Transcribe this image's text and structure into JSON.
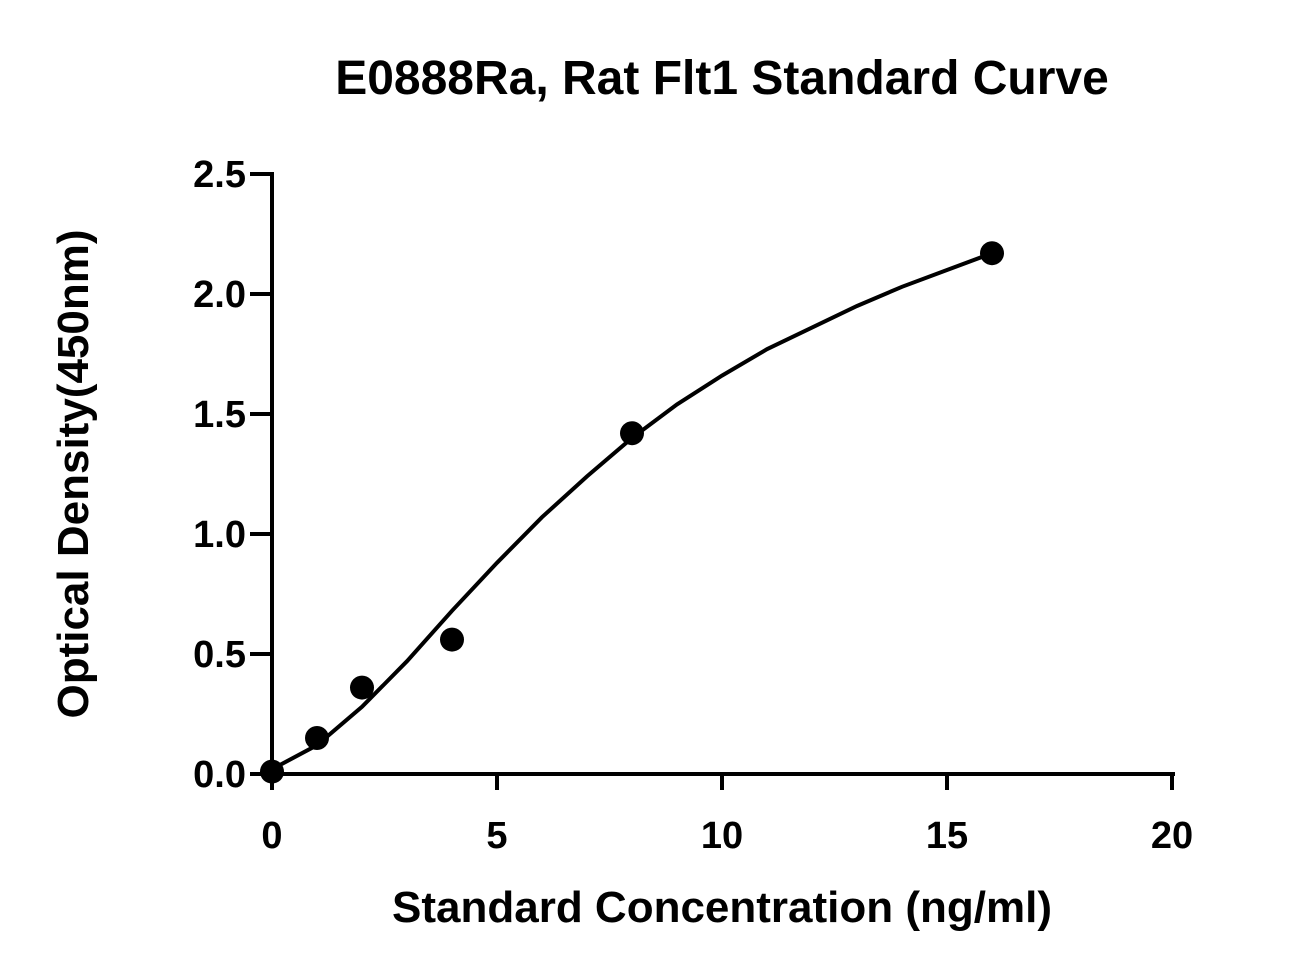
{
  "chart_data": {
    "type": "scatter",
    "title": "E0888Ra, Rat Flt1 Standard Curve",
    "xlabel": "Standard Concentration (ng/ml)",
    "ylabel": "Optical Density(450nm)",
    "xlim": [
      0,
      20
    ],
    "ylim": [
      0,
      2.5
    ],
    "x_ticks": [
      0,
      5,
      10,
      15,
      20
    ],
    "y_ticks": [
      0.0,
      0.5,
      1.0,
      1.5,
      2.0,
      2.5
    ],
    "x_tick_labels": [
      "0",
      "5",
      "10",
      "15",
      "20"
    ],
    "y_tick_labels": [
      "0.0",
      "0.5",
      "1.0",
      "1.5",
      "2.0",
      "2.5"
    ],
    "grid": false,
    "legend": "none",
    "series": [
      {
        "points": [
          {
            "x": 0,
            "y": 0.01
          },
          {
            "x": 1,
            "y": 0.15
          },
          {
            "x": 2,
            "y": 0.36
          },
          {
            "x": 4,
            "y": 0.56
          },
          {
            "x": 8,
            "y": 1.42
          },
          {
            "x": 16,
            "y": 2.17
          }
        ],
        "marker": "circle",
        "color": "#000000"
      }
    ],
    "fit_curve": {
      "type": "4PL",
      "color": "#000000",
      "x_range": [
        0,
        16
      ],
      "points": [
        {
          "x": 0,
          "y": 0.02
        },
        {
          "x": 1,
          "y": 0.12
        },
        {
          "x": 2,
          "y": 0.28
        },
        {
          "x": 3,
          "y": 0.47
        },
        {
          "x": 4,
          "y": 0.68
        },
        {
          "x": 5,
          "y": 0.88
        },
        {
          "x": 6,
          "y": 1.07
        },
        {
          "x": 7,
          "y": 1.24
        },
        {
          "x": 8,
          "y": 1.4
        },
        {
          "x": 9,
          "y": 1.54
        },
        {
          "x": 10,
          "y": 1.66
        },
        {
          "x": 11,
          "y": 1.77
        },
        {
          "x": 12,
          "y": 1.86
        },
        {
          "x": 13,
          "y": 1.95
        },
        {
          "x": 14,
          "y": 2.03
        },
        {
          "x": 15,
          "y": 2.1
        },
        {
          "x": 16,
          "y": 2.17
        }
      ]
    }
  }
}
